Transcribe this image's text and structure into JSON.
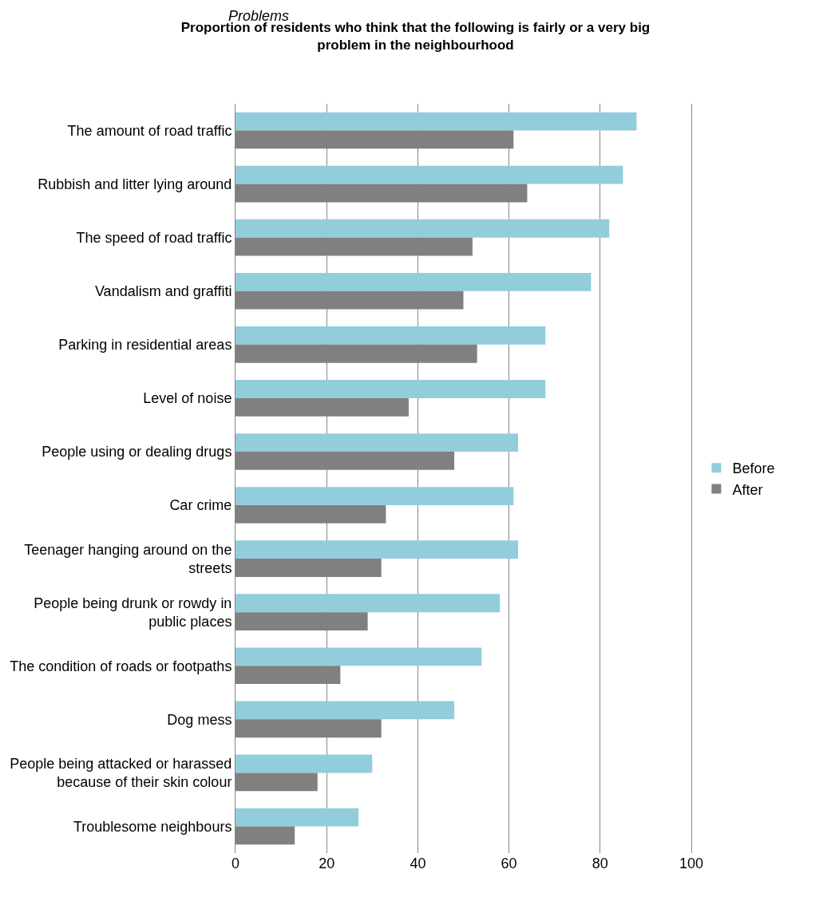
{
  "chart_data": {
    "type": "bar",
    "orientation": "horizontal",
    "title": "Proportion of residents who think that the following is fairly or a very big problem in the neighbourhood",
    "annotations": [
      "Problems"
    ],
    "categories": [
      "The amount of road traffic",
      "Rubbish and litter lying around",
      "The speed of road traffic",
      "Vandalism and graffiti",
      "Parking in residential areas",
      "Level of noise",
      "People using or dealing drugs",
      "Car crime",
      "Teenager hanging around on the streets",
      "People being drunk or rowdy in public places",
      "The condition of roads or footpaths",
      "Dog mess",
      "People being attacked or harassed because of their skin colour",
      "Troublesome neighbours"
    ],
    "series": [
      {
        "name": "Before",
        "color": "#92cddc",
        "values": [
          88,
          85,
          82,
          78,
          68,
          68,
          62,
          61,
          62,
          58,
          54,
          48,
          30,
          27
        ]
      },
      {
        "name": "After",
        "color": "#808080",
        "values": [
          61,
          64,
          52,
          50,
          53,
          38,
          48,
          33,
          32,
          29,
          23,
          32,
          18,
          13
        ]
      }
    ],
    "xlim": [
      0,
      100
    ],
    "xticks": [
      0,
      20,
      40,
      60,
      80,
      100
    ],
    "grid": "x",
    "legend": "right"
  }
}
